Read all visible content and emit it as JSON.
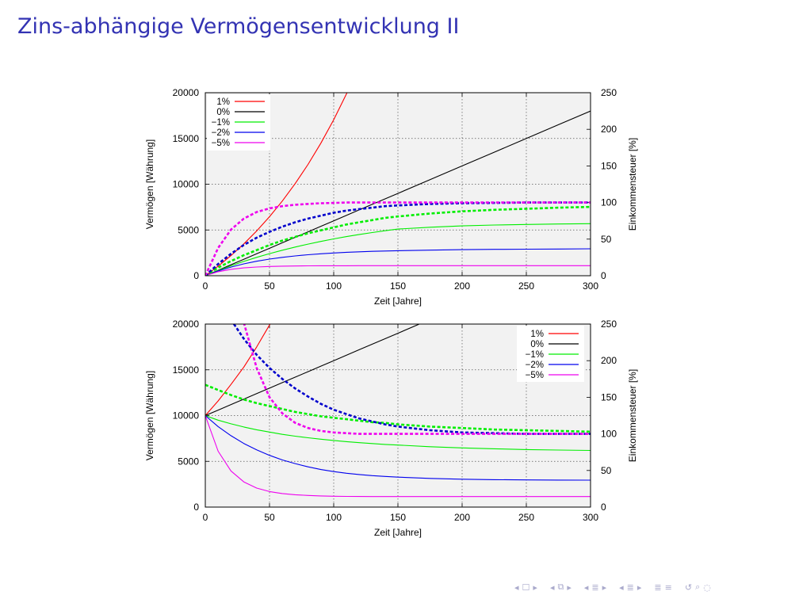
{
  "slide": {
    "title": "Zins-abhängige Vermögensentwicklung II"
  },
  "colors": {
    "title": "#3333b3",
    "plot_bg": "#f2f2f2",
    "nav": "#aaaacc"
  },
  "navigation": {
    "icons": [
      "frame-prev-icon",
      "frame-next-icon",
      "subsection-prev-icon",
      "subsection-next-icon",
      "section-prev-icon",
      "section-next-icon",
      "subsec-prev-icon",
      "subsec-next-icon",
      "outline-icon",
      "search-icon"
    ]
  },
  "chart_data": [
    {
      "type": "line",
      "title": "",
      "xlabel": "Zeit [Jahre]",
      "ylabel": "Vermögen [Währung]",
      "y2label": "Einkommensteuer [%]",
      "xlim": [
        0,
        300
      ],
      "ylim": [
        0,
        20000
      ],
      "y2lim": [
        0,
        250
      ],
      "xticks": [
        "0",
        "50",
        "100",
        "150",
        "200",
        "250",
        "300"
      ],
      "yticks": [
        "0",
        "5000",
        "10000",
        "15000",
        "20000"
      ],
      "y2ticks": [
        "0",
        "50",
        "100",
        "150",
        "200",
        "250"
      ],
      "grid": true,
      "legend_position": "top-left",
      "x": [
        0,
        10,
        20,
        30,
        40,
        50,
        60,
        70,
        80,
        90,
        100,
        110,
        120,
        130,
        140,
        150,
        175,
        200,
        225,
        250,
        275,
        300
      ],
      "series": [
        {
          "name": "1%",
          "color": "#ff0000",
          "style": "solid",
          "axis": "y",
          "values": [
            0,
            1046,
            2202,
            3478,
            4889,
            6446,
            8166,
            10068,
            12168,
            14488,
            17048,
            19884,
            23010,
            null,
            null,
            null,
            null,
            null,
            null,
            null,
            null,
            null
          ]
        },
        {
          "name": "0%",
          "color": "#000000",
          "style": "solid",
          "axis": "y",
          "values": [
            0,
            600,
            1200,
            1800,
            2400,
            3000,
            3600,
            4200,
            4800,
            5400,
            6000,
            6600,
            7200,
            7800,
            8400,
            9000,
            10500,
            12000,
            13500,
            15000,
            16500,
            18000
          ]
        },
        {
          "name": "−1%",
          "color": "#00ee00",
          "style": "solid",
          "axis": "y",
          "values": [
            0,
            564,
            1084,
            1564,
            2006,
            2414,
            2790,
            3137,
            3457,
            3752,
            4025,
            4276,
            4508,
            4722,
            4919,
            5100,
            5300,
            5450,
            5540,
            5600,
            5650,
            5690
          ]
        },
        {
          "name": "−2%",
          "color": "#0000ee",
          "style": "solid",
          "axis": "y",
          "values": [
            0,
            520,
            945,
            1296,
            1582,
            1818,
            2010,
            2167,
            2296,
            2402,
            2488,
            2559,
            2617,
            2665,
            2704,
            2736,
            2800,
            2850,
            2880,
            2900,
            2920,
            2940
          ]
        },
        {
          "name": "−5%",
          "color": "#ee00ee",
          "style": "solid",
          "axis": "y",
          "values": [
            0,
            440,
            700,
            858,
            953,
            1010,
            1045,
            1067,
            1079,
            1087,
            1091,
            1094,
            1096,
            1097,
            1098,
            1098,
            1099,
            1100,
            1100,
            1100,
            1100,
            1100
          ]
        },
        {
          "name": "",
          "color": "#00ee00",
          "style": "dashed",
          "axis": "y2",
          "values": [
            0,
            11,
            20,
            28,
            35,
            42,
            48,
            53,
            58,
            62,
            66,
            70,
            73,
            76,
            79,
            81,
            85,
            88,
            90,
            91.5,
            93,
            94
          ]
        },
        {
          "name": "",
          "color": "#0000cc",
          "style": "dashed",
          "axis": "y2",
          "values": [
            0,
            16,
            30,
            42,
            52,
            60,
            67,
            73,
            78,
            82,
            86,
            89,
            91,
            93,
            95,
            96,
            98,
            99,
            99.5,
            100,
            100,
            100
          ]
        },
        {
          "name": "",
          "color": "#ee00ee",
          "style": "dashed",
          "axis": "y2",
          "values": [
            0,
            38,
            63,
            78,
            87,
            92,
            95,
            97,
            98,
            99,
            99.5,
            100,
            100,
            100,
            100,
            100,
            100,
            100,
            100,
            100,
            100,
            100
          ]
        }
      ]
    },
    {
      "type": "line",
      "title": "",
      "xlabel": "Zeit [Jahre]",
      "ylabel": "Vermögen [Währung]",
      "y2label": "Einkommensteuer [%]",
      "xlim": [
        0,
        300
      ],
      "ylim": [
        0,
        20000
      ],
      "y2lim": [
        0,
        250
      ],
      "xticks": [
        "0",
        "50",
        "100",
        "150",
        "200",
        "250",
        "300"
      ],
      "yticks": [
        "0",
        "5000",
        "10000",
        "15000",
        "20000"
      ],
      "y2ticks": [
        "0",
        "50",
        "100",
        "150",
        "200",
        "250"
      ],
      "grid": true,
      "legend_position": "top-right",
      "x": [
        0,
        10,
        20,
        30,
        40,
        50,
        60,
        70,
        80,
        90,
        100,
        110,
        120,
        130,
        140,
        150,
        175,
        200,
        225,
        250,
        275,
        300
      ],
      "series": [
        {
          "name": "1%",
          "color": "#ff0000",
          "style": "solid",
          "axis": "y",
          "values": [
            10000,
            11600,
            13400,
            15300,
            17500,
            19900,
            22500,
            null,
            null,
            null,
            null,
            null,
            null,
            null,
            null,
            null,
            null,
            null,
            null,
            null,
            null,
            null
          ]
        },
        {
          "name": "0%",
          "color": "#000000",
          "style": "solid",
          "axis": "y",
          "values": [
            10000,
            10600,
            11200,
            11800,
            12400,
            13000,
            13600,
            14200,
            14800,
            15400,
            16000,
            16600,
            17200,
            17800,
            18400,
            19000,
            20500,
            null,
            null,
            null,
            null,
            null
          ]
        },
        {
          "name": "−1%",
          "color": "#00ee00",
          "style": "solid",
          "axis": "y",
          "values": [
            10000,
            9500,
            9100,
            8750,
            8450,
            8200,
            7950,
            7750,
            7580,
            7420,
            7280,
            7150,
            7040,
            6940,
            6850,
            6780,
            6600,
            6470,
            6370,
            6290,
            6230,
            6190
          ]
        },
        {
          "name": "−2%",
          "color": "#0000ee",
          "style": "solid",
          "axis": "y",
          "values": [
            10000,
            8800,
            7800,
            6950,
            6250,
            5650,
            5150,
            4750,
            4400,
            4100,
            3880,
            3700,
            3560,
            3440,
            3350,
            3270,
            3130,
            3050,
            3000,
            2970,
            2950,
            2940
          ]
        },
        {
          "name": "−5%",
          "color": "#ee00ee",
          "style": "solid",
          "axis": "y",
          "values": [
            10000,
            6100,
            3950,
            2750,
            2080,
            1700,
            1480,
            1350,
            1270,
            1220,
            1190,
            1170,
            1160,
            1150,
            1150,
            1150,
            1150,
            1150,
            1150,
            1150,
            1150,
            1150
          ]
        },
        {
          "name": "",
          "color": "#00ee00",
          "style": "dashed",
          "axis": "y2",
          "values": [
            167,
            160,
            153,
            147,
            142,
            138,
            134,
            130,
            127,
            124,
            122,
            120,
            118,
            116,
            115,
            113,
            110,
            108,
            106,
            105,
            104,
            103
          ]
        },
        {
          "name": "",
          "color": "#0000cc",
          "style": "dashed",
          "axis": "y2",
          "values": [
            null,
            null,
            256,
            230,
            208,
            190,
            175,
            162,
            151,
            141,
            133,
            127,
            121,
            117,
            113,
            110,
            105,
            102,
            101,
            100,
            100,
            100
          ]
        },
        {
          "name": "",
          "color": "#ee00ee",
          "style": "dashed",
          "axis": "y2",
          "values": [
            null,
            null,
            null,
            252,
            190,
            150,
            128,
            115,
            108,
            104,
            102,
            101,
            100,
            100,
            100,
            100,
            100,
            100,
            100,
            100,
            100,
            100
          ]
        }
      ]
    }
  ]
}
